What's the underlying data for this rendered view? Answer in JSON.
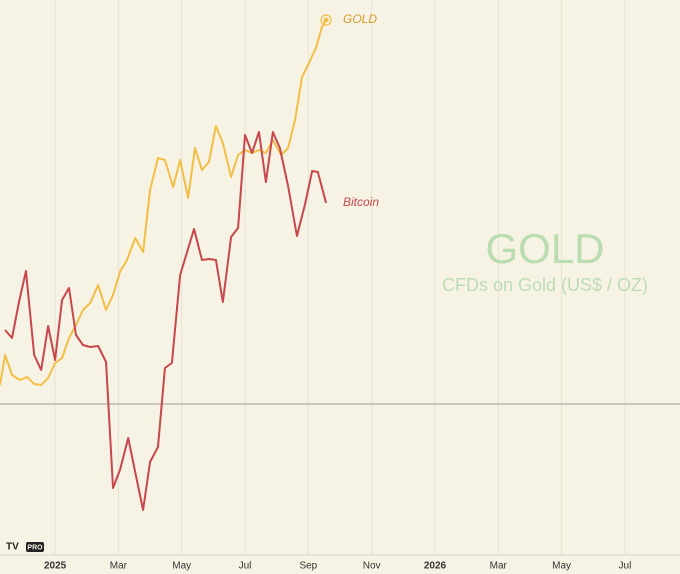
{
  "chart_data": {
    "type": "line",
    "title": "GOLD",
    "subtitle": "CFDs on Gold (US$ / OZ)",
    "logo": "PRO",
    "grid": true,
    "baseline": 0,
    "xlim": [
      -1.74,
      19.74
    ],
    "ylim": [
      -15.1,
      40.4
    ],
    "xticks": [
      {
        "value": 0,
        "label": "2025"
      },
      {
        "value": 2,
        "label": "Mar"
      },
      {
        "value": 4,
        "label": "May"
      },
      {
        "value": 6,
        "label": "Jul"
      },
      {
        "value": 8,
        "label": "Sep"
      },
      {
        "value": 10,
        "label": "Nov"
      },
      {
        "value": 12,
        "label": "2026"
      },
      {
        "value": 14,
        "label": "Mar"
      },
      {
        "value": 16,
        "label": "May"
      },
      {
        "value": 18,
        "label": "Jul"
      }
    ],
    "series": [
      {
        "name": "GOLD",
        "color": "#f2be45",
        "x": [
          -1.74,
          -1.58,
          -1.36,
          -1.11,
          -0.88,
          -0.66,
          -0.44,
          -0.22,
          0,
          0.22,
          0.44,
          0.66,
          0.88,
          1.11,
          1.36,
          1.61,
          1.83,
          2.05,
          2.27,
          2.53,
          2.78,
          3.0,
          3.25,
          3.47,
          3.73,
          3.95,
          4.2,
          4.42,
          4.64,
          4.86,
          5.08,
          5.3,
          5.56,
          5.78,
          6.0,
          6.22,
          6.44,
          6.66,
          6.88,
          7.14,
          7.36,
          7.58,
          7.8,
          8.02,
          8.24,
          8.43,
          8.56
        ],
        "values": [
          1.9,
          4.9,
          2.9,
          2.4,
          2.7,
          2.0,
          1.9,
          2.6,
          4.1,
          4.6,
          6.6,
          7.9,
          9.4,
          10.1,
          11.9,
          9.4,
          10.9,
          13.2,
          14.4,
          16.6,
          15.2,
          21.4,
          24.6,
          24.4,
          21.7,
          24.4,
          20.6,
          25.6,
          23.4,
          24.2,
          27.8,
          26.1,
          22.7,
          24.9,
          25.4,
          25.1,
          25.4,
          25.1,
          26.4,
          24.9,
          25.6,
          28.4,
          32.7,
          34.1,
          35.6,
          37.7,
          38.4
        ]
      },
      {
        "name": "Bitcoin",
        "color": "#c9464b",
        "x": [
          -1.58,
          -1.36,
          -1.14,
          -0.92,
          -0.66,
          -0.44,
          -0.22,
          0,
          0.22,
          0.44,
          0.66,
          0.88,
          1.11,
          1.36,
          1.61,
          1.83,
          2.05,
          2.31,
          2.53,
          2.78,
          3.0,
          3.25,
          3.47,
          3.69,
          3.95,
          4.17,
          4.39,
          4.64,
          4.86,
          5.08,
          5.3,
          5.56,
          5.78,
          6.0,
          6.22,
          6.44,
          6.66,
          6.88,
          7.1,
          7.36,
          7.64,
          7.89,
          8.12,
          8.3,
          8.56
        ],
        "values": [
          7.4,
          6.6,
          10.2,
          13.3,
          4.9,
          3.4,
          7.8,
          4.4,
          10.4,
          11.6,
          6.9,
          5.9,
          5.7,
          5.8,
          4.2,
          -8.4,
          -6.6,
          -3.4,
          -6.8,
          -10.6,
          -5.8,
          -4.3,
          3.6,
          4.1,
          12.9,
          15.2,
          17.5,
          14.4,
          14.5,
          14.4,
          10.2,
          16.7,
          17.6,
          26.9,
          25.1,
          27.2,
          22.2,
          27.2,
          25.6,
          21.8,
          16.8,
          19.9,
          23.3,
          23.2,
          20.1
        ]
      }
    ]
  }
}
